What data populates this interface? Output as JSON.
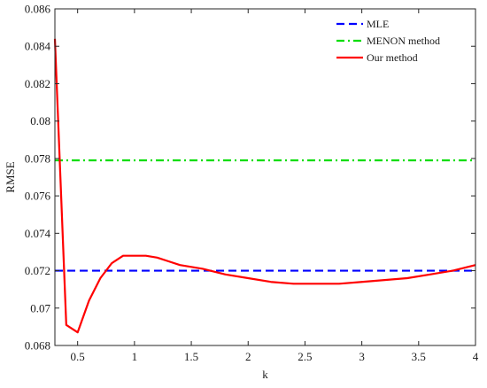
{
  "chart_data": {
    "type": "line",
    "xlabel": "k",
    "ylabel": "RMSE",
    "xlim": [
      0.3,
      4
    ],
    "ylim": [
      0.068,
      0.086
    ],
    "grid": false,
    "legend_position": "top-right",
    "x_ticks": [
      0.5,
      1,
      1.5,
      2,
      2.5,
      3,
      3.5,
      4
    ],
    "x_tick_labels": [
      "0.5",
      "1",
      "1.5",
      "2",
      "2.5",
      "3",
      "3.5",
      "4"
    ],
    "y_ticks": [
      0.068,
      0.07,
      0.072,
      0.074,
      0.076,
      0.078,
      0.08,
      0.082,
      0.084,
      0.086
    ],
    "y_tick_labels": [
      "0.068",
      "0.07",
      "0.072",
      "0.074",
      "0.076",
      "0.078",
      "0.08",
      "0.082",
      "0.084",
      "0.086"
    ],
    "series": [
      {
        "name": "MLE",
        "color": "#0000ff",
        "style": "dashed",
        "x": [
          0.3,
          4
        ],
        "y": [
          0.072,
          0.072
        ]
      },
      {
        "name": "MENON method",
        "color": "#00dd00",
        "style": "dash-dot",
        "x": [
          0.3,
          4
        ],
        "y": [
          0.0779,
          0.0779
        ]
      },
      {
        "name": "Our method",
        "color": "#ff0000",
        "style": "solid",
        "x": [
          0.3,
          0.4,
          0.5,
          0.6,
          0.7,
          0.8,
          0.9,
          1.0,
          1.1,
          1.2,
          1.3,
          1.4,
          1.5,
          1.6,
          1.8,
          2.0,
          2.2,
          2.4,
          2.6,
          2.8,
          3.0,
          3.2,
          3.4,
          3.6,
          3.8,
          4.0
        ],
        "y": [
          0.0844,
          0.0691,
          0.0687,
          0.0704,
          0.0716,
          0.0724,
          0.0728,
          0.0728,
          0.0728,
          0.0727,
          0.0725,
          0.0723,
          0.0722,
          0.0721,
          0.0718,
          0.0716,
          0.0714,
          0.0713,
          0.0713,
          0.0713,
          0.0714,
          0.0715,
          0.0716,
          0.0718,
          0.072,
          0.0723
        ]
      }
    ]
  }
}
